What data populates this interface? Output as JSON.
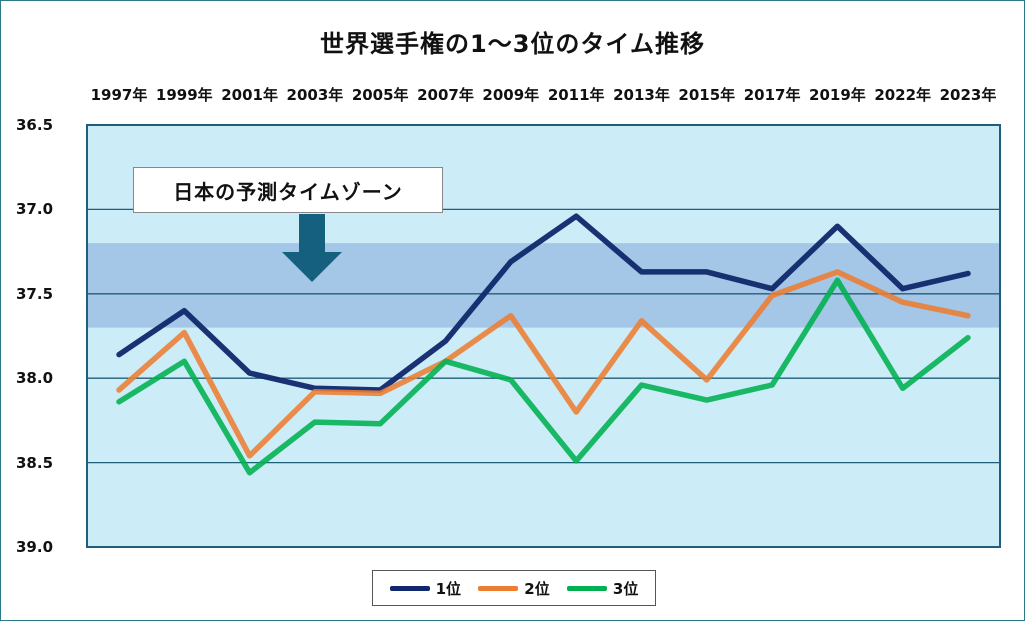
{
  "chart_data": {
    "type": "line",
    "title": "世界選手権の1～3位のタイム推移",
    "categories": [
      "1997年",
      "1999年",
      "2001年",
      "2003年",
      "2005年",
      "2007年",
      "2009年",
      "2011年",
      "2013年",
      "2015年",
      "2017年",
      "2019年",
      "2022年",
      "2023年"
    ],
    "ytick_labels": [
      "36.5",
      "37.0",
      "37.5",
      "38.0",
      "38.5",
      "39.0"
    ],
    "ylim": [
      36.5,
      39.0
    ],
    "y_inverted": true,
    "grid": true,
    "legend_position": "bottom",
    "band": {
      "label": "日本の予測タイムゾーン",
      "from": 37.2,
      "to": 37.7
    },
    "series": [
      {
        "name": "1位",
        "color": "#10286b",
        "values": [
          37.86,
          37.6,
          37.97,
          38.06,
          38.07,
          37.78,
          37.31,
          37.04,
          37.37,
          37.37,
          37.47,
          37.1,
          37.47,
          37.38
        ]
      },
      {
        "name": "2位",
        "color": "#ed7d31",
        "values": [
          38.07,
          37.73,
          38.46,
          38.08,
          38.09,
          37.9,
          37.63,
          38.2,
          37.66,
          38.01,
          37.51,
          37.37,
          37.55,
          37.63
        ]
      },
      {
        "name": "3位",
        "color": "#00b050",
        "values": [
          38.14,
          37.9,
          38.56,
          38.26,
          38.27,
          37.9,
          38.01,
          38.49,
          38.04,
          38.13,
          38.04,
          37.42,
          38.06,
          37.76
        ]
      }
    ]
  },
  "legend": {
    "items": [
      "1位",
      "2位",
      "3位"
    ]
  }
}
